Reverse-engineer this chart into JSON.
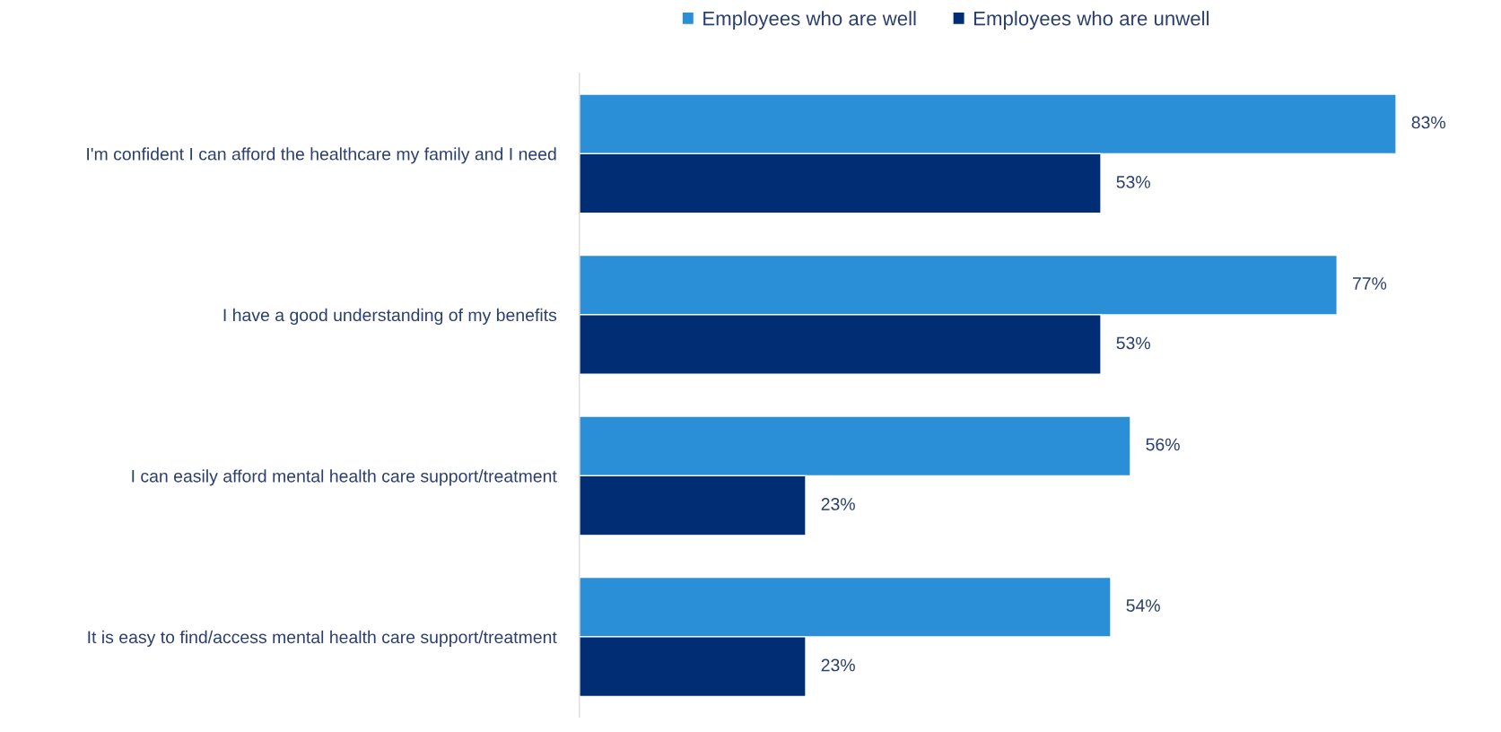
{
  "chart_data": {
    "type": "bar",
    "orientation": "horizontal",
    "categories": [
      "I'm confident I can afford the healthcare my family and I need",
      "I have a good understanding of my benefits",
      "I can easily afford mental health care support/treatment",
      "It is easy to find/access mental health care support/treatment"
    ],
    "series": [
      {
        "name": "Employees who are well",
        "color": "#2a8fd6",
        "values": [
          83,
          77,
          56,
          54
        ],
        "value_labels": [
          "83%",
          "77%",
          "56%",
          "54%"
        ]
      },
      {
        "name": "Employees who are unwell",
        "color": "#002d74",
        "values": [
          53,
          53,
          23,
          23
        ],
        "value_labels": [
          "53%",
          "53%",
          "23%",
          "23%"
        ]
      }
    ],
    "tick_labels": "y",
    "legend": "top"
  }
}
